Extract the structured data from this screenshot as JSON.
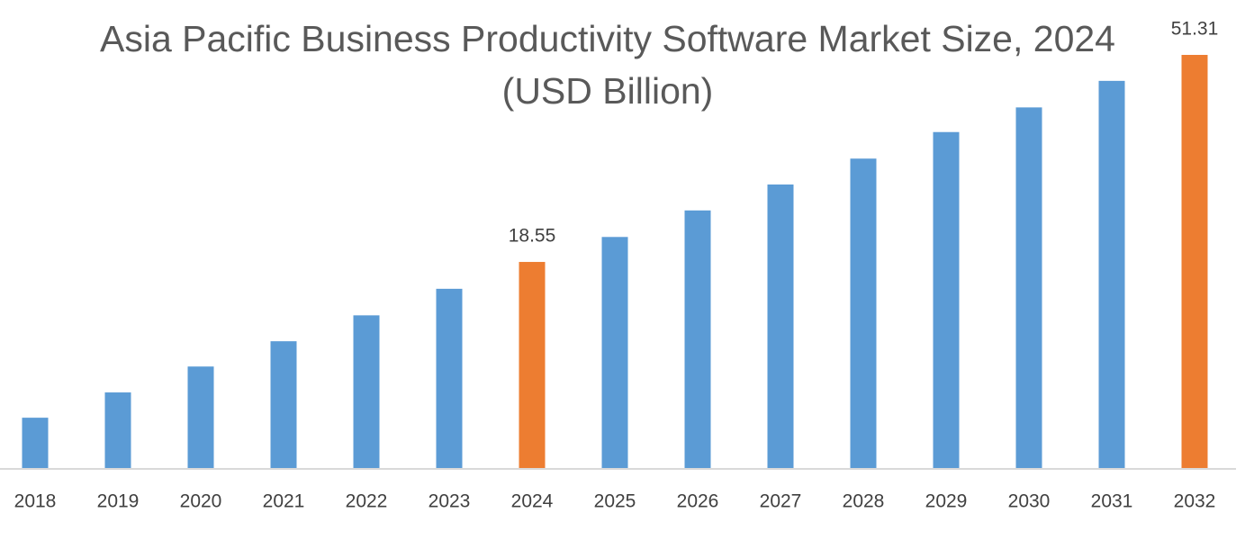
{
  "chart_data": {
    "type": "bar",
    "title": "Asia Pacific Business Productivity Software Market Size, 2024 (USD Billion)",
    "categories": [
      "2018",
      "2019",
      "2020",
      "2021",
      "2022",
      "2023",
      "2024",
      "2025",
      "2026",
      "2027",
      "2028",
      "2029",
      "2030",
      "2031",
      "2032"
    ],
    "values": [
      -6.1,
      -2.1,
      2.0,
      6.0,
      10.1,
      14.3,
      18.55,
      22.5,
      26.7,
      30.8,
      34.9,
      39.1,
      43.0,
      47.2,
      51.31
    ],
    "value_labels": [
      null,
      null,
      null,
      null,
      null,
      null,
      "18.55",
      null,
      null,
      null,
      null,
      null,
      null,
      null,
      "51.31"
    ],
    "colors": [
      "#5b9bd5",
      "#5b9bd5",
      "#5b9bd5",
      "#5b9bd5",
      "#5b9bd5",
      "#5b9bd5",
      "#ed7d31",
      "#5b9bd5",
      "#5b9bd5",
      "#5b9bd5",
      "#5b9bd5",
      "#5b9bd5",
      "#5b9bd5",
      "#5b9bd5",
      "#ed7d31"
    ],
    "ylim": [
      -14.2,
      54.3
    ],
    "grid": false
  }
}
